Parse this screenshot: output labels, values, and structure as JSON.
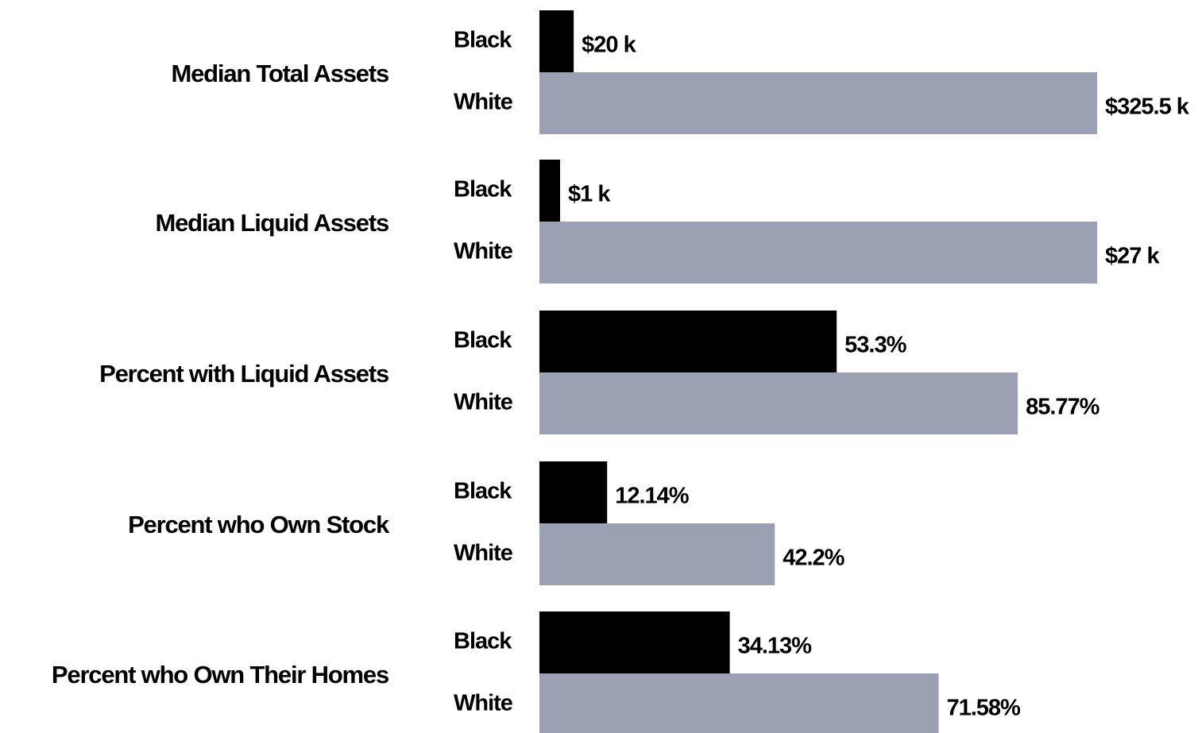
{
  "chart_data": [
    {
      "type": "bar",
      "orientation": "horizontal",
      "title": "Median Total Assets",
      "categories": [
        "Black",
        "White"
      ],
      "values": [
        20,
        325.5
      ],
      "value_labels": [
        "$20 k",
        "$325.5 k"
      ],
      "colors": [
        "#000000",
        "#9ca0b3"
      ],
      "xlim": [
        0,
        325.5
      ]
    },
    {
      "type": "bar",
      "orientation": "horizontal",
      "title": "Median Liquid Assets",
      "categories": [
        "Black",
        "White"
      ],
      "values": [
        1,
        27
      ],
      "value_labels": [
        "$1 k",
        "$27 k"
      ],
      "colors": [
        "#000000",
        "#9ca0b3"
      ],
      "xlim": [
        0,
        27
      ]
    },
    {
      "type": "bar",
      "orientation": "horizontal",
      "title": "Percent with Liquid Assets",
      "categories": [
        "Black",
        "White"
      ],
      "values": [
        53.3,
        85.77
      ],
      "value_labels": [
        "53.3%",
        "85.77%"
      ],
      "colors": [
        "#000000",
        "#9ca0b3"
      ],
      "xlim": [
        0,
        100
      ]
    },
    {
      "type": "bar",
      "orientation": "horizontal",
      "title": "Percent who Own Stock",
      "categories": [
        "Black",
        "White"
      ],
      "values": [
        12.14,
        42.2
      ],
      "value_labels": [
        "12.14%",
        "42.2%"
      ],
      "colors": [
        "#000000",
        "#9ca0b3"
      ],
      "xlim": [
        0,
        100
      ]
    },
    {
      "type": "bar",
      "orientation": "horizontal",
      "title": "Percent who Own Their Homes",
      "categories": [
        "Black",
        "White"
      ],
      "values": [
        34.13,
        71.58
      ],
      "value_labels": [
        "34.13%",
        "71.58%"
      ],
      "colors": [
        "#000000",
        "#9ca0b3"
      ],
      "xlim": [
        0,
        100
      ]
    }
  ]
}
